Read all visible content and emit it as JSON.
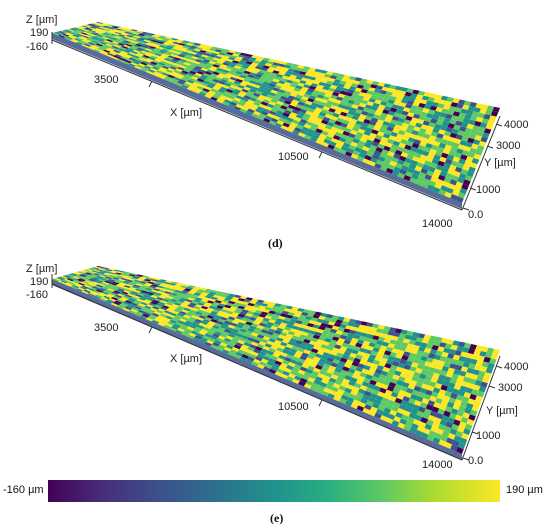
{
  "panels": [
    {
      "id": "d",
      "caption": "(d)",
      "z_axis": {
        "label": "Z [µm]",
        "ticks": [
          "190",
          "-160"
        ]
      },
      "x_axis": {
        "label": "X [µm]",
        "ticks": [
          "3500",
          "10500",
          "14000"
        ]
      },
      "y_axis": {
        "label": "Y [µm]",
        "ticks": [
          "4000",
          "3000",
          "1000",
          "0.0"
        ]
      }
    },
    {
      "id": "e",
      "caption": "(e)",
      "z_axis": {
        "label": "Z [µm]",
        "ticks": [
          "190",
          "-160"
        ]
      },
      "x_axis": {
        "label": "X [µm]",
        "ticks": [
          "3500",
          "10500",
          "14000"
        ]
      },
      "y_axis": {
        "label": "Y [µm]",
        "ticks": [
          "4000",
          "3000",
          "1000",
          "0.0"
        ]
      }
    }
  ],
  "colorbar": {
    "min_label": "-160 µm",
    "max_label": "190 µm",
    "colormap": "viridis",
    "colors": [
      "#440154",
      "#3b528b",
      "#21918c",
      "#5ec962",
      "#fde725"
    ]
  },
  "chart_data": [
    {
      "type": "heatmap",
      "title": "(d)",
      "subtype": "3D surface topography",
      "xlabel": "X [µm]",
      "ylabel": "Y [µm]",
      "zlabel": "Z [µm]",
      "xlim": [
        0,
        14000
      ],
      "ylim": [
        0,
        4000
      ],
      "zlim": [
        -160,
        190
      ],
      "x_ticks": [
        3500,
        10500,
        14000
      ],
      "y_ticks": [
        0.0,
        1000,
        3000,
        4000
      ],
      "z_ticks": [
        -160,
        190
      ],
      "colormap": "viridis"
    },
    {
      "type": "heatmap",
      "title": "(e)",
      "subtype": "3D surface topography",
      "xlabel": "X [µm]",
      "ylabel": "Y [µm]",
      "zlabel": "Z [µm]",
      "xlim": [
        0,
        14000
      ],
      "ylim": [
        0,
        4000
      ],
      "zlim": [
        -160,
        190
      ],
      "x_ticks": [
        3500,
        10500,
        14000
      ],
      "y_ticks": [
        0.0,
        1000,
        3000,
        4000
      ],
      "z_ticks": [
        -160,
        190
      ],
      "colormap": "viridis"
    }
  ]
}
